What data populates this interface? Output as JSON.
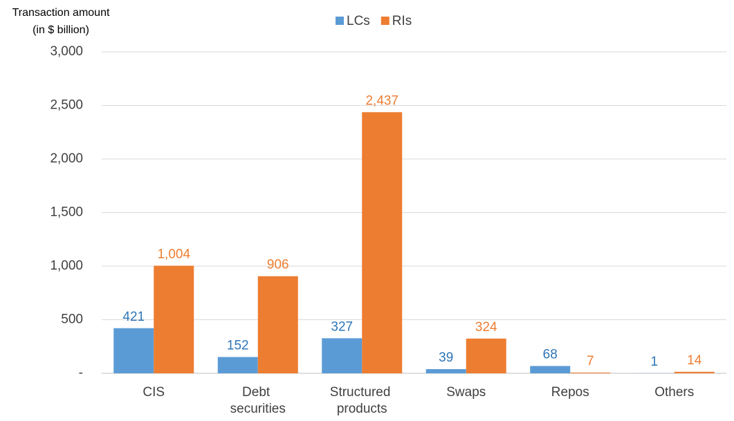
{
  "chart_data": {
    "type": "bar",
    "y_label": [
      "Transaction amount",
      "(in $ billion)"
    ],
    "categories": [
      "CIS",
      "Debt securities",
      "Structured products",
      "Swaps",
      "Repos",
      "Others"
    ],
    "series": [
      {
        "name": "LCs",
        "color": "#5b9bd5",
        "label_color": "#2e75b6",
        "values": [
          421,
          152,
          327,
          39,
          68,
          1
        ]
      },
      {
        "name": "RIs",
        "color": "#ed7d31",
        "label_color": "#ed7d31",
        "values": [
          1004,
          906,
          2437,
          324,
          7,
          14
        ],
        "value_labels": [
          "1,004",
          "906",
          "2,437",
          "324",
          "7",
          "14"
        ]
      }
    ],
    "ylim": [
      0,
      3000
    ],
    "yticks": [
      {
        "value": 0,
        "label": "-"
      },
      500,
      {
        "value": 1000,
        "label": "1,000"
      },
      {
        "value": 1500,
        "label": "1,500"
      },
      {
        "value": 2000,
        "label": "2,000"
      },
      {
        "value": 2500,
        "label": "2,500"
      },
      {
        "value": 3000,
        "label": "3,000"
      }
    ],
    "grid": true,
    "legend": "top"
  }
}
